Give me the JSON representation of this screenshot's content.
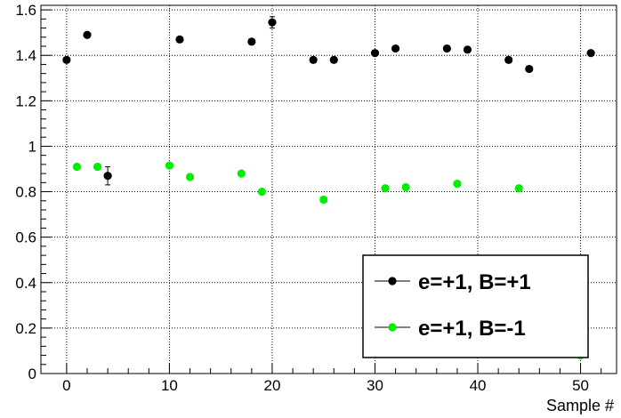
{
  "chart_data": {
    "type": "scatter",
    "title": "",
    "xlabel": "Sample #",
    "ylabel": "",
    "xlim": [
      -2.5,
      53.5
    ],
    "ylim": [
      0,
      1.62
    ],
    "grid": true,
    "legend_position": "bottom-right",
    "x_ticks": [
      0,
      10,
      20,
      30,
      40,
      50
    ],
    "y_ticks": [
      0,
      0.2,
      0.4,
      0.6,
      0.8,
      1,
      1.2,
      1.4,
      1.6
    ],
    "series": [
      {
        "name": "e=+1, B=+1",
        "color": "#000000",
        "points": [
          {
            "x": 0,
            "y": 1.38
          },
          {
            "x": 2,
            "y": 1.49
          },
          {
            "x": 4,
            "y": 0.87,
            "err": 0.04
          },
          {
            "x": 11,
            "y": 1.47
          },
          {
            "x": 18,
            "y": 1.46
          },
          {
            "x": 20,
            "y": 1.545,
            "err": 0.025
          },
          {
            "x": 24,
            "y": 1.38
          },
          {
            "x": 26,
            "y": 1.38
          },
          {
            "x": 30,
            "y": 1.41
          },
          {
            "x": 32,
            "y": 1.43
          },
          {
            "x": 37,
            "y": 1.43
          },
          {
            "x": 39,
            "y": 1.425
          },
          {
            "x": 43,
            "y": 1.38
          },
          {
            "x": 45,
            "y": 1.34
          },
          {
            "x": 51,
            "y": 1.41
          }
        ]
      },
      {
        "name": "e=+1, B=-1",
        "color": "#00ee00",
        "points": [
          {
            "x": 1,
            "y": 0.91
          },
          {
            "x": 3,
            "y": 0.91
          },
          {
            "x": 10,
            "y": 0.915
          },
          {
            "x": 12,
            "y": 0.865
          },
          {
            "x": 17,
            "y": 0.88
          },
          {
            "x": 19,
            "y": 0.8
          },
          {
            "x": 25,
            "y": 0.765
          },
          {
            "x": 31,
            "y": 0.815
          },
          {
            "x": 33,
            "y": 0.82
          },
          {
            "x": 38,
            "y": 0.835
          },
          {
            "x": 44,
            "y": 0.815
          },
          {
            "x": 50,
            "y": 0.08
          }
        ]
      }
    ]
  }
}
